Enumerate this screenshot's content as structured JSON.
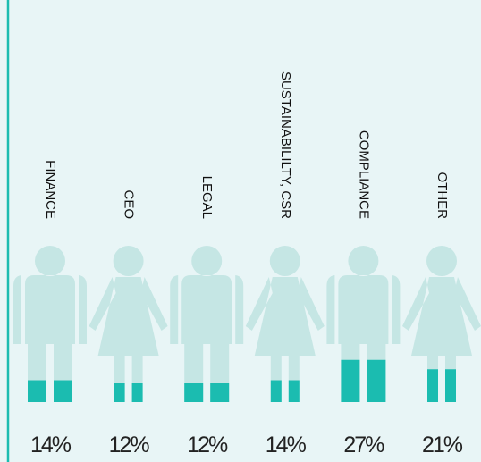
{
  "chart_data": {
    "type": "pictogram",
    "categories": [
      "FINANCE",
      "CEO",
      "LEGAL",
      "SUSTAINABILILTY, CSR",
      "COMPLIANCE",
      "OTHER"
    ],
    "figures": [
      "male",
      "female",
      "male",
      "female",
      "male",
      "female"
    ],
    "values": [
      14,
      12,
      12,
      14,
      27,
      21
    ],
    "value_labels": [
      "14%",
      "12%",
      "12%",
      "14%",
      "27%",
      "21%"
    ],
    "ylim": [
      0,
      100
    ],
    "color": "#1bbcb0",
    "base_color": "#c5e6e4"
  }
}
